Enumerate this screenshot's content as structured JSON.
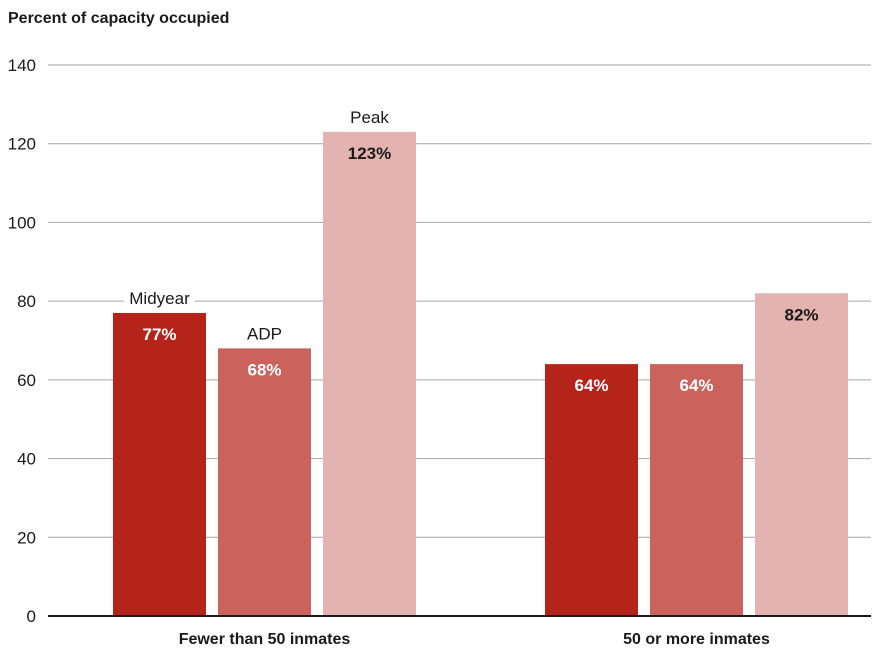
{
  "chart_data": {
    "type": "bar",
    "ylabel": "Percent of capacity occupied",
    "ylim": [
      0,
      140
    ],
    "yticks": [
      0,
      20,
      40,
      60,
      80,
      100,
      120,
      140
    ],
    "grid": true,
    "legend": "inline labels above first-group bars",
    "categories": [
      "Fewer than 50 inmates",
      "50 or more inmates"
    ],
    "series": [
      {
        "name": "Midyear",
        "values": [
          77,
          64
        ],
        "labels": [
          "77%",
          "64%"
        ],
        "color": "#b5241b",
        "label_color": "#ffffff"
      },
      {
        "name": "ADP",
        "values": [
          68,
          64
        ],
        "labels": [
          "68%",
          "64%"
        ],
        "color": "#c9635c",
        "label_color": "#ffffff"
      },
      {
        "name": "Peak",
        "values": [
          123,
          82
        ],
        "labels": [
          "123%",
          "82%"
        ],
        "color": "#e3b3b0",
        "label_color": "#1a1a1a"
      }
    ]
  }
}
